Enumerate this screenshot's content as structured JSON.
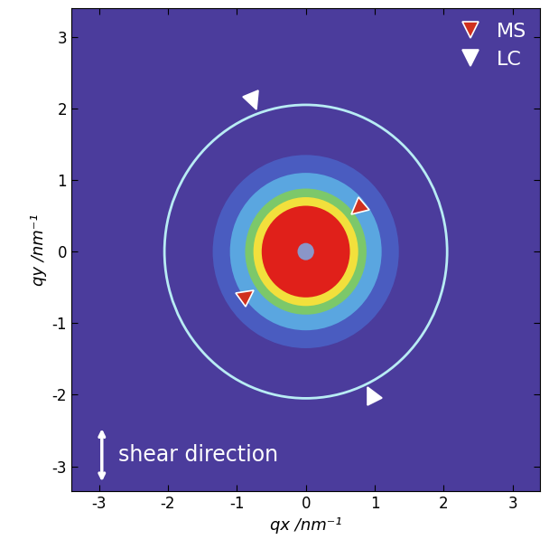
{
  "chart_data": {
    "type": "scattering_pattern",
    "xlabel": "qx /nm⁻¹",
    "ylabel": "qy /nm⁻¹",
    "annotation": "shear direction",
    "xlim": [
      -3.4,
      3.4
    ],
    "ylim": [
      -3.35,
      3.4
    ],
    "xticks": [
      -3,
      -2,
      -1,
      0,
      1,
      2,
      3
    ],
    "yticks": [
      -3,
      -2,
      -1,
      0,
      1,
      2,
      3
    ],
    "color": "#4b3c9c",
    "rings": [
      {
        "radius": 1.35,
        "color": "#4a5cc0"
      },
      {
        "radius": 1.1,
        "color": "#5aa6e0"
      },
      {
        "radius": 0.88,
        "color": "#7cc86a"
      },
      {
        "radius": 0.76,
        "color": "#f2e03c"
      },
      {
        "radius": 0.64,
        "color": "#e0201a"
      },
      {
        "radius": 0.12,
        "color": "#8a96c8"
      }
    ],
    "ring_line": {
      "radius": 2.05,
      "color": "#b8ecf4"
    },
    "series": [
      {
        "name": "MS",
        "color": "#d0301e",
        "marker": "triangle",
        "x": [
          0.75,
          -0.85
        ],
        "y": [
          0.6,
          -0.6
        ]
      },
      {
        "name": "LC",
        "color": "#ffffff",
        "marker": "triangle",
        "x": [
          -0.75,
          0.95
        ],
        "y": [
          2.1,
          -2.0
        ]
      }
    ],
    "legend": "upper right"
  }
}
